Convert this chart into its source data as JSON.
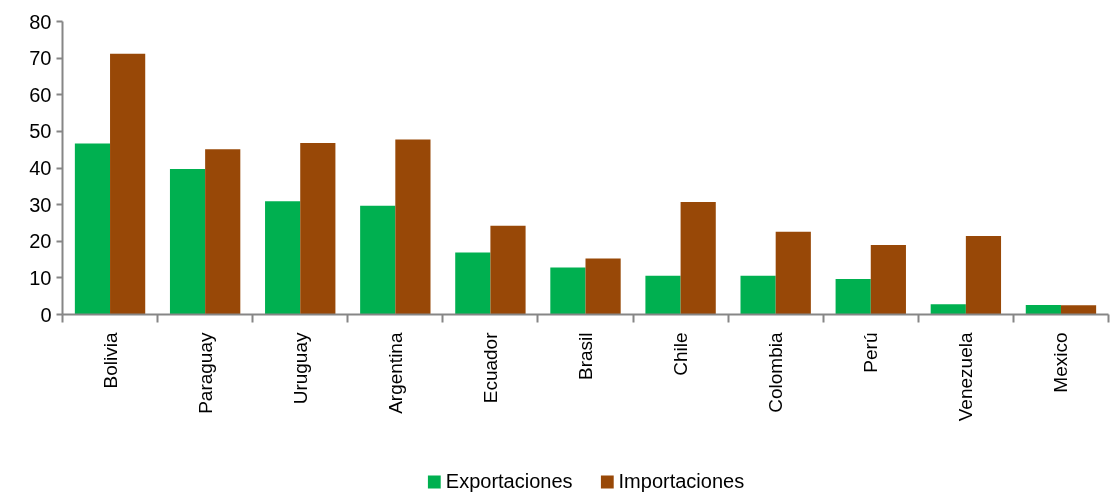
{
  "chart_data": {
    "type": "bar",
    "categories": [
      "Bolivia",
      "Paraguay",
      "Uruguay",
      "Argentina",
      "Ecuador",
      "Brasil",
      "Chile",
      "Colombia",
      "Perú",
      "Venezuela",
      "Mexico"
    ],
    "series": [
      {
        "name": "Exportaciones",
        "color": "#00b050",
        "values": [
          46.7,
          39.7,
          30.9,
          29.7,
          16.9,
          12.8,
          10.6,
          10.6,
          9.7,
          2.8,
          2.6
        ]
      },
      {
        "name": "Importaciones",
        "color": "#984807",
        "values": [
          71.2,
          45.1,
          46.8,
          47.8,
          24.2,
          15.3,
          30.7,
          22.6,
          19.0,
          21.4,
          2.5
        ]
      }
    ],
    "ylim": [
      0,
      80
    ],
    "yticks": [
      0,
      10,
      20,
      30,
      40,
      50,
      60,
      70,
      80
    ],
    "grid": false,
    "legend": "bottom"
  }
}
